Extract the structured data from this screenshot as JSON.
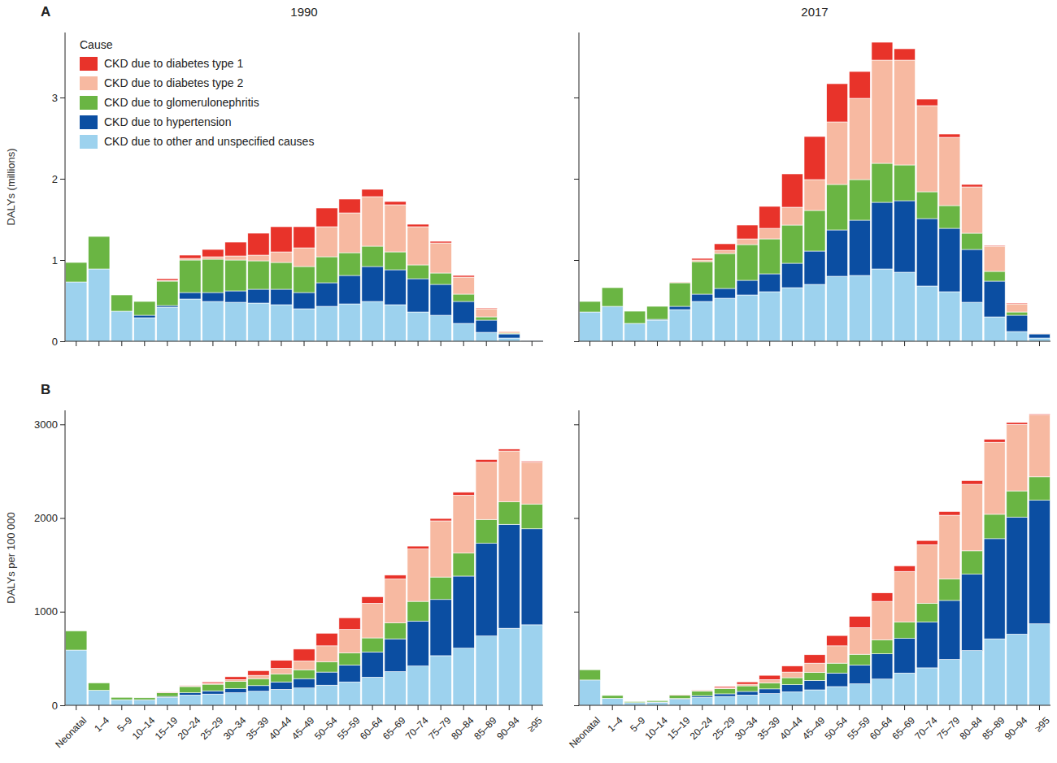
{
  "chart_data": [
    {
      "type": "bar",
      "stacked": true,
      "grid": false,
      "tick_labels": "y",
      "legend": "top-left",
      "panel_label": "A",
      "title": "1990",
      "y_label": "DALYs (millions)",
      "legend_title": "Cause",
      "categories": [
        "Neonatal",
        "1–4",
        "5–9",
        "10–14",
        "15–19",
        "20–24",
        "25–29",
        "30–34",
        "35–39",
        "40–44",
        "45–49",
        "50–54",
        "55–59",
        "60–64",
        "65–69",
        "70–74",
        "75–79",
        "80–84",
        "85–89",
        "90–94",
        "≥95"
      ],
      "ylim": [
        0,
        3.8
      ],
      "yticks": [
        0,
        1,
        2,
        3
      ],
      "series": [
        {
          "name": "CKD due to diabetes type 1",
          "color": "#e8332a",
          "values": [
            0,
            0,
            0,
            0,
            0.02,
            0.04,
            0.09,
            0.17,
            0.27,
            0.31,
            0.26,
            0.23,
            0.17,
            0.09,
            0.04,
            0.03,
            0.02,
            0.02,
            0.01,
            0,
            0
          ]
        },
        {
          "name": "CKD due to diabetes type 2",
          "color": "#f7b9a1",
          "values": [
            0,
            0,
            0,
            0,
            0.01,
            0.02,
            0.03,
            0.05,
            0.07,
            0.13,
            0.23,
            0.37,
            0.49,
            0.61,
            0.58,
            0.47,
            0.37,
            0.21,
            0.1,
            0.02,
            0
          ]
        },
        {
          "name": "CKD due to glomerulonephritis",
          "color": "#6ab543",
          "values": [
            0.24,
            0.4,
            0.2,
            0.17,
            0.3,
            0.4,
            0.41,
            0.38,
            0.35,
            0.33,
            0.32,
            0.32,
            0.28,
            0.25,
            0.22,
            0.17,
            0.14,
            0.09,
            0.04,
            0.01,
            0
          ]
        },
        {
          "name": "CKD due to hypertension",
          "color": "#0b4ea2",
          "values": [
            0,
            0,
            0,
            0.03,
            0.02,
            0.08,
            0.11,
            0.14,
            0.17,
            0.19,
            0.2,
            0.29,
            0.35,
            0.43,
            0.43,
            0.41,
            0.38,
            0.27,
            0.15,
            0.05,
            0.005
          ]
        },
        {
          "name": "CKD due to other and unspecified causes",
          "color": "#9dd2ee",
          "values": [
            0.73,
            0.89,
            0.37,
            0.29,
            0.42,
            0.52,
            0.49,
            0.48,
            0.47,
            0.45,
            0.4,
            0.43,
            0.46,
            0.49,
            0.45,
            0.36,
            0.32,
            0.22,
            0.11,
            0.04,
            0.005
          ]
        }
      ]
    },
    {
      "type": "bar",
      "stacked": true,
      "grid": false,
      "tick_labels": false,
      "title": "2017",
      "categories": [
        "Neonatal",
        "1–4",
        "5–9",
        "10–14",
        "15–19",
        "20–24",
        "25–29",
        "30–34",
        "35–39",
        "40–44",
        "45–49",
        "50–54",
        "55–59",
        "60–64",
        "65–69",
        "70–74",
        "75–79",
        "80–84",
        "85–89",
        "90–94",
        "≥95"
      ],
      "ylim": [
        0,
        3.8
      ],
      "yticks": [
        0,
        1,
        2,
        3
      ],
      "series": [
        {
          "name": "CKD due to diabetes type 1",
          "color": "#e8332a",
          "values": [
            0,
            0,
            0,
            0,
            0,
            0.02,
            0.08,
            0.17,
            0.27,
            0.41,
            0.53,
            0.47,
            0.33,
            0.22,
            0.14,
            0.08,
            0.04,
            0.03,
            0.01,
            0.01,
            0
          ]
        },
        {
          "name": "CKD due to diabetes type 2",
          "color": "#f7b9a1",
          "values": [
            0,
            0,
            0,
            0,
            0.01,
            0.02,
            0.04,
            0.07,
            0.13,
            0.22,
            0.38,
            0.77,
            1.0,
            1.27,
            1.29,
            1.06,
            0.84,
            0.57,
            0.31,
            0.1,
            0.005
          ]
        },
        {
          "name": "CKD due to glomerulonephritis",
          "color": "#6ab543",
          "values": [
            0.13,
            0.23,
            0.15,
            0.16,
            0.29,
            0.4,
            0.43,
            0.44,
            0.43,
            0.47,
            0.5,
            0.56,
            0.5,
            0.48,
            0.44,
            0.33,
            0.28,
            0.2,
            0.12,
            0.04,
            0.005
          ]
        },
        {
          "name": "CKD due to hypertension",
          "color": "#0b4ea2",
          "values": [
            0,
            0,
            0,
            0.01,
            0.04,
            0.09,
            0.12,
            0.18,
            0.22,
            0.3,
            0.41,
            0.57,
            0.68,
            0.82,
            0.88,
            0.83,
            0.78,
            0.65,
            0.44,
            0.2,
            0.05
          ]
        },
        {
          "name": "CKD due to other and unspecified causes",
          "color": "#9dd2ee",
          "values": [
            0.36,
            0.43,
            0.22,
            0.26,
            0.39,
            0.49,
            0.53,
            0.57,
            0.61,
            0.66,
            0.7,
            0.8,
            0.81,
            0.89,
            0.85,
            0.68,
            0.61,
            0.48,
            0.3,
            0.12,
            0.04
          ]
        }
      ]
    },
    {
      "type": "bar",
      "stacked": true,
      "grid": false,
      "tick_labels": true,
      "panel_label": "B",
      "y_label": "DALYs per 100 000",
      "categories": [
        "Neonatal",
        "1–4",
        "5–9",
        "10–14",
        "15–19",
        "20–24",
        "25–29",
        "30–34",
        "35–39",
        "40–44",
        "45–49",
        "50–54",
        "55–59",
        "60–64",
        "65–69",
        "70–74",
        "75–79",
        "80–84",
        "85–89",
        "90–94",
        "≥95"
      ],
      "ylim": [
        0,
        3150
      ],
      "yticks": [
        0,
        1000,
        2000,
        3000
      ],
      "series": [
        {
          "name": "CKD due to diabetes type 1",
          "color": "#e8332a",
          "values": [
            0,
            0,
            0,
            0,
            3,
            5,
            15,
            30,
            50,
            85,
            125,
            135,
            125,
            70,
            40,
            30,
            25,
            30,
            30,
            20,
            10
          ]
        },
        {
          "name": "CKD due to diabetes type 2",
          "color": "#f7b9a1",
          "values": [
            0,
            0,
            0,
            0,
            2,
            5,
            10,
            20,
            35,
            60,
            95,
            170,
            250,
            370,
            470,
            560,
            600,
            620,
            610,
            543,
            445
          ]
        },
        {
          "name": "CKD due to glomerulonephritis",
          "color": "#6ab543",
          "values": [
            205,
            80,
            25,
            20,
            40,
            65,
            70,
            75,
            75,
            85,
            95,
            110,
            130,
            150,
            170,
            210,
            240,
            245,
            255,
            240,
            265
          ]
        },
        {
          "name": "CKD due to hypertension",
          "color": "#0b4ea2",
          "values": [
            0,
            0,
            0,
            5,
            10,
            25,
            35,
            45,
            60,
            80,
            100,
            140,
            180,
            270,
            350,
            480,
            600,
            770,
            990,
            1110,
            1025
          ]
        },
        {
          "name": "CKD due to other and unspecified causes",
          "color": "#9dd2ee",
          "values": [
            590,
            160,
            60,
            55,
            85,
            110,
            120,
            135,
            150,
            170,
            185,
            215,
            250,
            300,
            360,
            420,
            530,
            610,
            740,
            823,
            860
          ]
        }
      ]
    },
    {
      "type": "bar",
      "stacked": true,
      "grid": false,
      "tick_labels": "x",
      "categories": [
        "Neonatal",
        "1–4",
        "5–9",
        "10–14",
        "15–19",
        "20–24",
        "25–29",
        "30–34",
        "35–39",
        "40–44",
        "45–49",
        "50–54",
        "55–59",
        "60–64",
        "65–69",
        "70–74",
        "75–79",
        "80–84",
        "85–89",
        "90–94",
        "≥95"
      ],
      "ylim": [
        0,
        3150
      ],
      "yticks": [
        0,
        1000,
        2000,
        3000
      ],
      "series": [
        {
          "name": "CKD due to diabetes type 1",
          "color": "#e8332a",
          "values": [
            0,
            0,
            0,
            0,
            3,
            7,
            13,
            25,
            45,
            65,
            90,
            110,
            120,
            90,
            60,
            45,
            40,
            40,
            30,
            20,
            10
          ]
        },
        {
          "name": "CKD due to diabetes type 2",
          "color": "#f7b9a1",
          "values": [
            0,
            0,
            0,
            0,
            2,
            5,
            10,
            17,
            35,
            60,
            100,
            185,
            285,
            410,
            540,
            625,
            680,
            710,
            770,
            710,
            660
          ]
        },
        {
          "name": "CKD due to glomerulonephritis",
          "color": "#6ab543",
          "values": [
            110,
            30,
            12,
            15,
            35,
            50,
            55,
            60,
            65,
            75,
            85,
            105,
            115,
            150,
            175,
            200,
            230,
            250,
            260,
            280,
            250
          ]
        },
        {
          "name": "CKD due to hypertension",
          "color": "#0b4ea2",
          "values": [
            0,
            0,
            0,
            3,
            7,
            18,
            27,
            38,
            50,
            75,
            100,
            145,
            200,
            270,
            370,
            490,
            630,
            815,
            1070,
            1250,
            1320
          ]
        },
        {
          "name": "CKD due to other and unspecified causes",
          "color": "#9dd2ee",
          "values": [
            270,
            75,
            28,
            32,
            65,
            85,
            95,
            110,
            125,
            145,
            165,
            200,
            230,
            280,
            345,
            400,
            490,
            585,
            710,
            760,
            870
          ]
        }
      ]
    }
  ]
}
